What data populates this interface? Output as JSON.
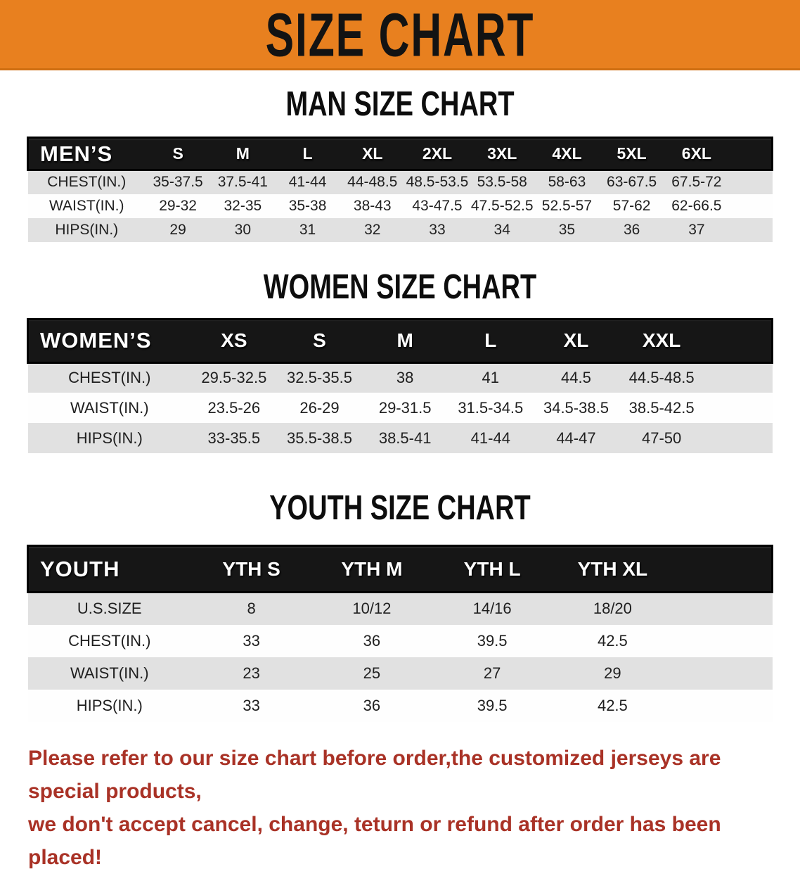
{
  "banner": {
    "title": "SIZE CHART",
    "bg_color": "#E8801F"
  },
  "sections": [
    {
      "heading": "MAN SIZE CHART",
      "table": {
        "label": "MEN’S",
        "columns": [
          "S",
          "M",
          "L",
          "XL",
          "2XL",
          "3XL",
          "4XL",
          "5XL",
          "6XL"
        ],
        "rows": [
          {
            "label": "CHEST(IN.)",
            "values": [
              "35-37.5",
              "37.5-41",
              "41-44",
              "44-48.5",
              "48.5-53.5",
              "53.5-58",
              "58-63",
              "63-67.5",
              "67.5-72"
            ]
          },
          {
            "label": "WAIST(IN.)",
            "values": [
              "29-32",
              "32-35",
              "35-38",
              "38-43",
              "43-47.5",
              "47.5-52.5",
              "52.5-57",
              "57-62",
              "62-66.5"
            ]
          },
          {
            "label": "HIPS(IN.)",
            "values": [
              "29",
              "30",
              "31",
              "32",
              "33",
              "34",
              "35",
              "36",
              "37"
            ]
          }
        ]
      }
    },
    {
      "heading": "WOMEN SIZE CHART",
      "table": {
        "label": "WOMEN’S",
        "columns": [
          "XS",
          "S",
          "M",
          "L",
          "XL",
          "XXL"
        ],
        "rows": [
          {
            "label": "CHEST(IN.)",
            "values": [
              "29.5-32.5",
              "32.5-35.5",
              "38",
              "41",
              "44.5",
              "44.5-48.5"
            ]
          },
          {
            "label": "WAIST(IN.)",
            "values": [
              "23.5-26",
              "26-29",
              "29-31.5",
              "31.5-34.5",
              "34.5-38.5",
              "38.5-42.5"
            ]
          },
          {
            "label": "HIPS(IN.)",
            "values": [
              "33-35.5",
              "35.5-38.5",
              "38.5-41",
              "41-44",
              "44-47",
              "47-50"
            ]
          }
        ]
      }
    },
    {
      "heading": "YOUTH SIZE CHART",
      "table": {
        "label": "YOUTH",
        "columns": [
          "YTH S",
          "YTH M",
          "YTH L",
          "YTH XL"
        ],
        "rows": [
          {
            "label": "U.S.SIZE",
            "values": [
              "8",
              "10/12",
              "14/16",
              "18/20"
            ]
          },
          {
            "label": "CHEST(IN.)",
            "values": [
              "33",
              "36",
              "39.5",
              "42.5"
            ]
          },
          {
            "label": "WAIST(IN.)",
            "values": [
              "23",
              "25",
              "27",
              "29"
            ]
          },
          {
            "label": "HIPS(IN.)",
            "values": [
              "33",
              "36",
              "39.5",
              "42.5"
            ]
          }
        ]
      }
    }
  ],
  "disclaimer": {
    "line1": "Please refer to our size chart before order,the customized jerseys are special products,",
    "line2": "we don't accept cancel, change, teturn or refund after order has been placed!",
    "color": "#A93226"
  },
  "colors": {
    "banner_orange": "#E8801F",
    "header_black": "#161616",
    "row_gray": "#E1E1E1",
    "row_white": "#FEFEFE",
    "disclaimer_red": "#A93226"
  }
}
